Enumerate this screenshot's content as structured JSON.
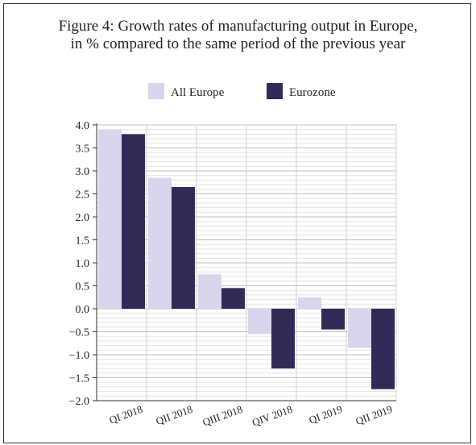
{
  "chart_data": {
    "type": "bar",
    "title_line1": "Figure 4: Growth rates of manufacturing output in Europe,",
    "title_line2": "in % compared to the same period of the previous year",
    "categories": [
      "QI 2018",
      "QII 2018",
      "QIII 2018",
      "QIV 2018",
      "QI 2019",
      "QII 2019"
    ],
    "series": [
      {
        "name": "All Europe",
        "color": "#d8d6ec",
        "values": [
          3.9,
          2.85,
          0.75,
          -0.55,
          0.25,
          -0.85
        ]
      },
      {
        "name": "Eurozone",
        "color": "#342a57",
        "values": [
          3.8,
          2.65,
          0.45,
          -1.3,
          -0.45,
          -1.75
        ]
      }
    ],
    "yticks": [
      "4.0",
      "3.5",
      "3.0",
      "2.5",
      "2.0",
      "1.5",
      "1.0",
      "0.5",
      "0.0",
      "−0.5",
      "−1.0",
      "−1.5",
      "−2.0"
    ],
    "ylim": [
      -2.0,
      4.0
    ],
    "grid": true,
    "legend_position": "top"
  }
}
